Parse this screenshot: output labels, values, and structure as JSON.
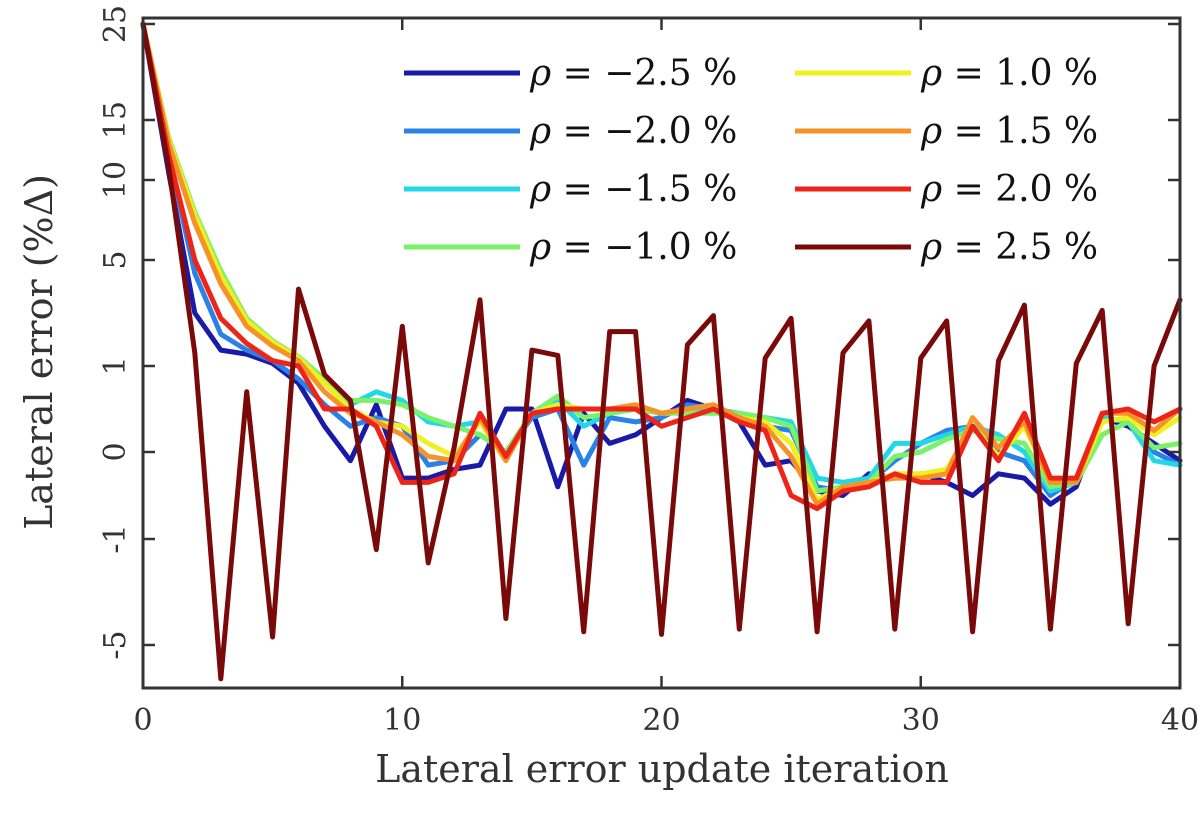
{
  "chart_data": {
    "type": "line",
    "xlabel": "Lateral error update iteration",
    "ylabel": "Lateral error (%Δ)",
    "xlim": [
      0,
      40
    ],
    "xticks": [
      0,
      10,
      20,
      30,
      40
    ],
    "xtick_labels": [
      "0",
      "10",
      "20",
      "30",
      "40"
    ],
    "yticks": [
      -5,
      -1,
      0,
      1,
      5,
      10,
      15,
      25
    ],
    "ytick_labels": [
      "-5",
      "-1",
      "0",
      "1",
      "5",
      "10",
      "15",
      "25"
    ],
    "y_scale": "nonlinear (expanded near zero)",
    "grid": false,
    "legend_position": "top-right",
    "x": [
      0,
      1,
      2,
      3,
      4,
      5,
      6,
      7,
      8,
      9,
      10,
      11,
      12,
      13,
      14,
      15,
      16,
      17,
      18,
      19,
      20,
      21,
      22,
      23,
      24,
      25,
      26,
      27,
      28,
      29,
      30,
      31,
      32,
      33,
      34,
      35,
      36,
      37,
      38,
      39,
      40
    ],
    "series": [
      {
        "name": "−2.5 %",
        "color": "#1a1aa8",
        "values": [
          25,
          10.5,
          3.0,
          1.6,
          1.45,
          1.1,
          0.8,
          0.3,
          -0.1,
          0.55,
          -0.3,
          -0.3,
          -0.2,
          -0.15,
          0.5,
          0.5,
          -0.4,
          0.45,
          0.1,
          0.2,
          0.4,
          0.6,
          0.5,
          0.35,
          -0.15,
          -0.1,
          -0.45,
          -0.5,
          -0.25,
          -0.3,
          -0.25,
          -0.35,
          -0.5,
          -0.25,
          -0.3,
          -0.6,
          -0.4,
          0.4,
          0.3,
          0.1,
          -0.1
        ]
      },
      {
        "name": "−2.0 %",
        "color": "#2a82e6",
        "values": [
          25,
          12.0,
          4.5,
          2.2,
          1.6,
          1.2,
          0.85,
          0.55,
          0.3,
          0.4,
          0.3,
          -0.15,
          -0.1,
          0.2,
          0.0,
          0.4,
          0.5,
          -0.15,
          0.4,
          0.35,
          0.4,
          0.55,
          0.5,
          0.35,
          0.3,
          0.25,
          -0.4,
          -0.45,
          -0.35,
          -0.1,
          0.1,
          0.25,
          0.3,
          0.0,
          -0.1,
          -0.5,
          -0.3,
          0.4,
          0.35,
          0.0,
          -0.15
        ]
      },
      {
        "name": "−1.5 %",
        "color": "#22d8e8",
        "values": [
          25,
          13.0,
          7.5,
          4.3,
          2.6,
          1.85,
          1.3,
          0.8,
          0.55,
          0.7,
          0.6,
          0.35,
          0.3,
          0.35,
          -0.05,
          0.45,
          0.6,
          0.3,
          0.45,
          0.5,
          0.45,
          0.5,
          0.5,
          0.45,
          0.4,
          0.35,
          -0.3,
          -0.35,
          -0.3,
          0.1,
          0.1,
          0.2,
          0.3,
          0.2,
          0.0,
          -0.45,
          -0.35,
          0.4,
          0.35,
          -0.1,
          -0.15
        ]
      },
      {
        "name": "−1.0 %",
        "color": "#79f26a",
        "values": [
          25,
          13.5,
          8.0,
          4.6,
          2.8,
          1.95,
          1.35,
          0.85,
          0.6,
          0.6,
          0.55,
          0.4,
          0.3,
          0.2,
          0.0,
          0.45,
          0.65,
          0.4,
          0.45,
          0.5,
          0.45,
          0.45,
          0.45,
          0.45,
          0.4,
          0.3,
          -0.45,
          -0.4,
          -0.35,
          -0.05,
          0.0,
          0.15,
          0.25,
          0.15,
          0.1,
          -0.4,
          -0.35,
          0.2,
          0.35,
          0.05,
          0.1
        ]
      },
      {
        "name": "1.0 %",
        "color": "#f0f020",
        "values": [
          25,
          13.3,
          7.8,
          4.4,
          2.7,
          1.9,
          1.3,
          0.8,
          0.5,
          0.35,
          0.3,
          0.1,
          -0.05,
          0.35,
          -0.1,
          0.45,
          0.55,
          0.5,
          0.5,
          0.55,
          0.45,
          0.5,
          0.55,
          0.4,
          0.35,
          0.1,
          -0.55,
          -0.4,
          -0.35,
          -0.25,
          -0.25,
          -0.2,
          0.3,
          -0.05,
          0.3,
          -0.35,
          -0.35,
          0.35,
          0.4,
          0.2,
          0.4
        ]
      },
      {
        "name": "1.5 %",
        "color": "#f6922a",
        "values": [
          25,
          13.0,
          7.3,
          4.1,
          2.5,
          1.75,
          1.2,
          0.7,
          0.45,
          0.35,
          0.2,
          -0.05,
          -0.1,
          0.4,
          -0.1,
          0.45,
          0.5,
          0.5,
          0.5,
          0.55,
          0.45,
          0.5,
          0.55,
          0.4,
          0.3,
          -0.05,
          -0.6,
          -0.4,
          -0.35,
          -0.3,
          -0.3,
          -0.25,
          0.4,
          0.05,
          0.35,
          -0.35,
          -0.35,
          0.45,
          0.45,
          0.25,
          0.5
        ]
      },
      {
        "name": "2.0 %",
        "color": "#ee2418",
        "values": [
          25,
          12.0,
          5.0,
          2.8,
          1.85,
          1.2,
          1.0,
          0.5,
          0.5,
          0.3,
          -0.35,
          -0.35,
          -0.25,
          0.45,
          -0.05,
          0.45,
          0.5,
          0.5,
          0.5,
          0.5,
          0.3,
          0.4,
          0.5,
          0.35,
          0.25,
          -0.5,
          -0.65,
          -0.45,
          -0.4,
          -0.25,
          -0.35,
          -0.35,
          0.3,
          -0.1,
          0.45,
          -0.3,
          -0.3,
          0.45,
          0.5,
          0.35,
          0.5
        ]
      },
      {
        "name": "2.5 %",
        "color": "#7a0a0a",
        "values": [
          25,
          11.0,
          1.5,
          -6.5,
          0.7,
          -4.7,
          3.9,
          0.9,
          0.6,
          -1.4,
          2.5,
          -1.9,
          0.05,
          3.5,
          -4.0,
          1.6,
          1.4,
          -4.5,
          2.3,
          2.3,
          -4.6,
          1.8,
          2.9,
          -4.4,
          1.3,
          2.8,
          -4.5,
          1.5,
          2.7,
          -4.4,
          1.3,
          2.7,
          -4.5,
          1.2,
          3.3,
          -4.4,
          1.1,
          3.1,
          -4.2,
          1.0,
          3.5
        ]
      }
    ]
  }
}
